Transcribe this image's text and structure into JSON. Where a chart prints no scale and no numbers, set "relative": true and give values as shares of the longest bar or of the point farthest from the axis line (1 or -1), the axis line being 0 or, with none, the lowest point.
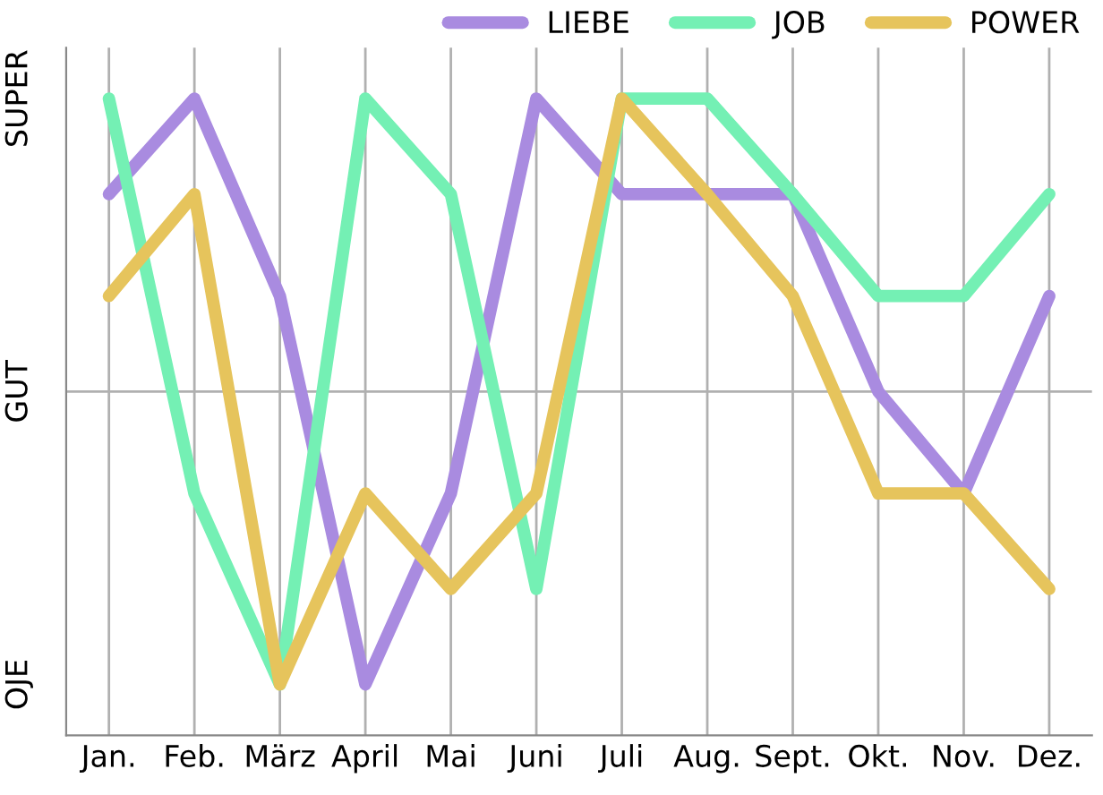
{
  "chart_data": {
    "type": "line",
    "relative": true,
    "categories": [
      "Jan.",
      "Feb.",
      "März",
      "April",
      "Mai",
      "Juni",
      "Juli",
      "Aug.",
      "Sept.",
      "Okt.",
      "Nov.",
      "Dez."
    ],
    "series": [
      {
        "name": "LIEBE",
        "color": "#a98be0",
        "values": [
          0.85,
          1,
          0.69,
          0.08,
          0.38,
          1,
          0.85,
          0.85,
          0.85,
          0.54,
          0.38,
          0.69
        ]
      },
      {
        "name": "JOB",
        "color": "#74f0b4",
        "values": [
          1,
          0.38,
          0.08,
          1,
          0.85,
          0.23,
          1,
          1,
          0.85,
          0.69,
          0.69,
          0.85
        ]
      },
      {
        "name": "POWER",
        "color": "#e6c45c",
        "values": [
          0.69,
          0.85,
          0.08,
          0.38,
          0.23,
          0.38,
          1,
          0.85,
          0.69,
          0.38,
          0.38,
          0.23
        ]
      }
    ],
    "annotations": [
      "OJE",
      "GUT",
      "SUPER"
    ],
    "ref_lines": [
      {
        "axis": "y",
        "value": 0.54,
        "color": "#b0b0b0"
      }
    ],
    "grid": "x",
    "legend": "top right",
    "marker": "none",
    "line_style": "solid"
  }
}
